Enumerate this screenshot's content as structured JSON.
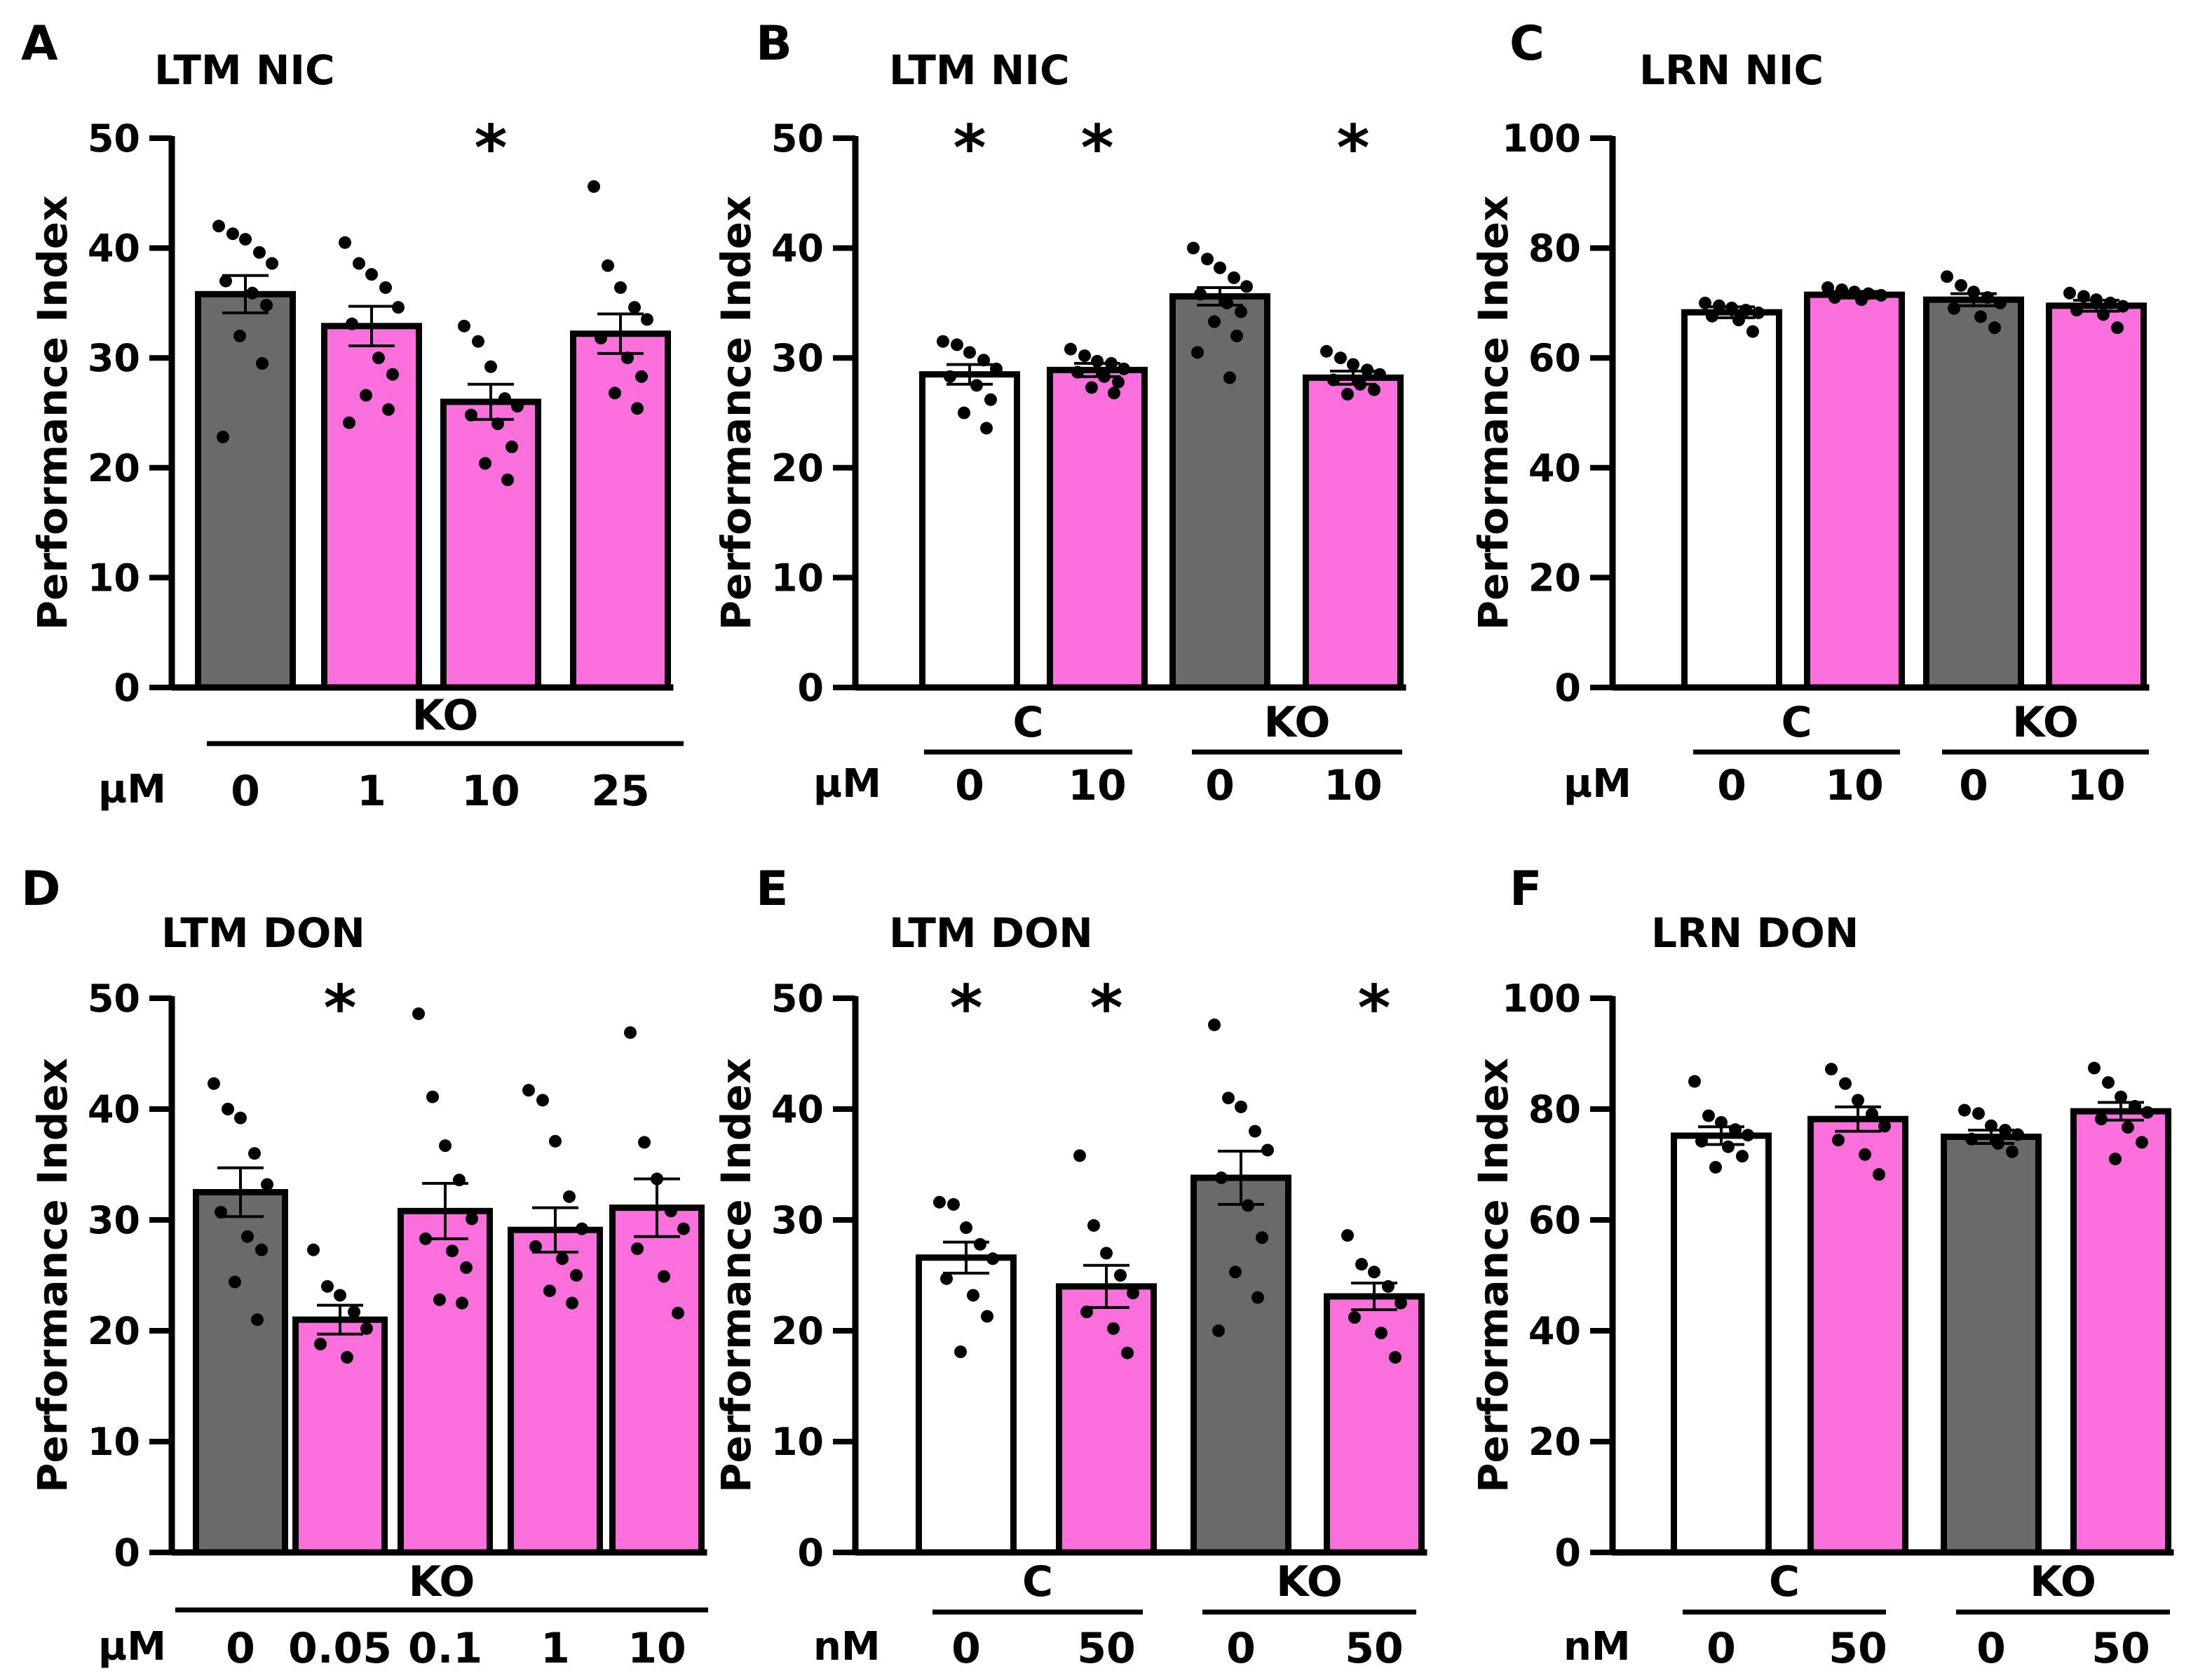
{
  "figure": {
    "colors": {
      "gray": "#6a6a6a",
      "pink": "#fb6fdd",
      "white": "#ffffff",
      "black": "#000000"
    },
    "ylabel": "Performance Index"
  },
  "chart_data": [
    {
      "panel": "A",
      "type": "bar",
      "title": "LTM NIC",
      "ylabel": "Performance Index",
      "ylim": [
        0,
        50
      ],
      "yticks": [
        0,
        10,
        20,
        30,
        40,
        50
      ],
      "unit": "µM",
      "groups": [
        {
          "label": "KO",
          "bars": [
            0,
            1,
            2,
            3
          ]
        }
      ],
      "categories": [
        "0",
        "1",
        "10",
        "25"
      ],
      "values": [
        35.8,
        32.9,
        26.0,
        32.2
      ],
      "sem": [
        1.7,
        1.8,
        1.6,
        1.8
      ],
      "colors": [
        "gray",
        "pink",
        "pink",
        "pink"
      ],
      "significant": [
        false,
        false,
        true,
        false
      ],
      "points": [
        [
          42.0,
          41.3,
          40.8,
          39.6,
          38.6,
          37.0,
          35.9,
          34.8,
          32.0,
          29.5,
          22.8
        ],
        [
          40.5,
          38.6,
          37.6,
          36.4,
          34.6,
          33.1,
          30.0,
          28.5,
          26.6,
          25.3,
          24.1
        ],
        [
          32.9,
          31.5,
          29.2,
          26.3,
          25.6,
          24.8,
          24.0,
          21.9,
          20.4,
          18.9
        ],
        [
          45.6,
          38.4,
          36.4,
          34.6,
          33.5,
          31.8,
          30.0,
          28.3,
          26.8,
          25.4
        ]
      ]
    },
    {
      "panel": "B",
      "type": "bar",
      "title": "LTM NIC",
      "ylabel": "Performance Index",
      "ylim": [
        0,
        50
      ],
      "yticks": [
        0,
        10,
        20,
        30,
        40,
        50
      ],
      "unit": "µM",
      "groups": [
        {
          "label": "C",
          "bars": [
            0,
            1
          ]
        },
        {
          "label": "KO",
          "bars": [
            2,
            3
          ]
        }
      ],
      "categories": [
        "0",
        "10",
        "0",
        "10"
      ],
      "values": [
        28.5,
        28.9,
        35.6,
        28.2
      ],
      "sem": [
        0.9,
        0.6,
        0.8,
        0.6
      ],
      "colors": [
        "white",
        "pink",
        "gray",
        "pink"
      ],
      "significant": [
        true,
        true,
        false,
        true
      ],
      "points": [
        [
          31.5,
          31.2,
          30.5,
          29.8,
          29.0,
          28.3,
          27.5,
          26.2,
          25.0,
          23.6
        ],
        [
          30.8,
          30.2,
          29.7,
          29.5,
          29.0,
          28.7,
          28.3,
          27.8,
          27.3,
          26.8
        ],
        [
          40.0,
          39.0,
          38.2,
          37.3,
          36.5,
          35.8,
          35.0,
          34.2,
          33.3,
          32.0,
          30.5,
          28.2
        ],
        [
          30.6,
          30.0,
          29.4,
          28.9,
          28.5,
          28.0,
          27.6,
          27.1,
          26.7
        ]
      ]
    },
    {
      "panel": "C",
      "type": "bar",
      "title": "LRN NIC",
      "ylabel": "Performance Index",
      "ylim": [
        0,
        100
      ],
      "yticks": [
        0,
        20,
        40,
        60,
        80,
        100
      ],
      "unit": "µM",
      "groups": [
        {
          "label": "C",
          "bars": [
            0,
            1
          ]
        },
        {
          "label": "KO",
          "bars": [
            2,
            3
          ]
        }
      ],
      "categories": [
        "0",
        "10",
        "0",
        "10"
      ],
      "values": [
        68.3,
        71.5,
        70.6,
        69.5
      ],
      "sem": [
        1.0,
        0.6,
        1.1,
        1.0
      ],
      "colors": [
        "white",
        "pink",
        "gray",
        "pink"
      ],
      "significant": [
        false,
        false,
        false,
        false
      ],
      "points": [
        [
          70.0,
          69.5,
          69.1,
          68.7,
          68.2,
          67.6,
          66.9,
          64.8
        ],
        [
          72.8,
          72.4,
          72.0,
          71.7,
          71.4,
          71.0,
          70.6
        ],
        [
          74.8,
          73.2,
          72.0,
          71.0,
          70.0,
          69.0,
          67.5,
          65.5
        ],
        [
          71.8,
          71.2,
          70.6,
          70.0,
          69.4,
          68.7,
          67.9,
          65.5
        ]
      ]
    },
    {
      "panel": "D",
      "type": "bar",
      "title": "LTM DON",
      "ylabel": "Performance Index",
      "ylim": [
        0,
        50
      ],
      "yticks": [
        0,
        10,
        20,
        30,
        40,
        50
      ],
      "unit": "µM",
      "groups": [
        {
          "label": "KO",
          "bars": [
            0,
            1,
            2,
            3,
            4
          ]
        }
      ],
      "categories": [
        "0",
        "0.05",
        "0.1",
        "1",
        "10"
      ],
      "values": [
        32.5,
        21.0,
        30.8,
        29.1,
        31.1
      ],
      "sem": [
        2.2,
        1.3,
        2.5,
        2.0,
        2.6
      ],
      "colors": [
        "gray",
        "pink",
        "pink",
        "pink",
        "pink"
      ],
      "significant": [
        false,
        true,
        false,
        false,
        false
      ],
      "points": [
        [
          42.3,
          40.0,
          39.2,
          36.0,
          33.2,
          30.7,
          28.5,
          27.3,
          24.4,
          21.0
        ],
        [
          27.3,
          24.0,
          23.2,
          21.7,
          20.2,
          18.8,
          17.6
        ],
        [
          48.6,
          41.1,
          36.7,
          33.6,
          30.1,
          28.3,
          27.2,
          25.7,
          22.8,
          22.5
        ],
        [
          41.7,
          40.8,
          37.1,
          32.1,
          29.2,
          27.6,
          26.5,
          25.0,
          23.6,
          22.5
        ],
        [
          46.9,
          37.0,
          33.7,
          30.8,
          29.2,
          27.4,
          24.9,
          21.6
        ]
      ]
    },
    {
      "panel": "E",
      "type": "bar",
      "title": "LTM DON",
      "ylabel": "Performance Index",
      "ylim": [
        0,
        50
      ],
      "yticks": [
        0,
        10,
        20,
        30,
        40,
        50
      ],
      "unit": "nM",
      "groups": [
        {
          "label": "C",
          "bars": [
            0,
            1
          ]
        },
        {
          "label": "KO",
          "bars": [
            2,
            3
          ]
        }
      ],
      "categories": [
        "0",
        "50",
        "0",
        "50"
      ],
      "values": [
        26.6,
        24.0,
        33.8,
        23.1
      ],
      "sem": [
        1.4,
        1.9,
        2.4,
        1.2
      ],
      "colors": [
        "white",
        "pink",
        "gray",
        "pink"
      ],
      "significant": [
        true,
        true,
        false,
        true
      ],
      "points": [
        [
          31.6,
          31.4,
          29.3,
          27.8,
          26.5,
          24.7,
          23.2,
          21.3,
          18.1
        ],
        [
          35.8,
          29.5,
          27.0,
          25.0,
          23.4,
          21.7,
          20.2,
          18.0
        ],
        [
          47.6,
          41.0,
          40.2,
          38.0,
          36.3,
          33.8,
          31.3,
          28.4,
          25.3,
          23.0,
          20.0
        ],
        [
          28.6,
          26.0,
          25.3,
          24.0,
          22.5,
          21.2,
          19.8,
          17.6
        ]
      ]
    },
    {
      "panel": "F",
      "type": "bar",
      "title": "LRN DON",
      "ylabel": "Performance Index",
      "ylim": [
        0,
        100
      ],
      "yticks": [
        0,
        20,
        40,
        60,
        80,
        100
      ],
      "unit": "nM",
      "groups": [
        {
          "label": "C",
          "bars": [
            0,
            1
          ]
        },
        {
          "label": "KO",
          "bars": [
            2,
            3
          ]
        }
      ],
      "categories": [
        "0",
        "50",
        "0",
        "50"
      ],
      "values": [
        75.2,
        78.2,
        75.0,
        79.6
      ],
      "sem": [
        1.6,
        2.2,
        1.2,
        1.6
      ],
      "colors": [
        "white",
        "pink",
        "gray",
        "pink"
      ],
      "significant": [
        false,
        false,
        false,
        false
      ],
      "points": [
        [
          85.0,
          78.8,
          77.6,
          76.3,
          75.3,
          74.2,
          73.2,
          71.5,
          69.5
        ],
        [
          87.2,
          84.6,
          81.6,
          79.1,
          76.9,
          74.4,
          71.8,
          68.2
        ],
        [
          79.8,
          79.2,
          77.0,
          76.2,
          75.4,
          74.6,
          73.8,
          72.3
        ],
        [
          87.4,
          84.8,
          82.2,
          80.5,
          79.4,
          78.2,
          76.7,
          74.0,
          71.0
        ]
      ]
    }
  ]
}
